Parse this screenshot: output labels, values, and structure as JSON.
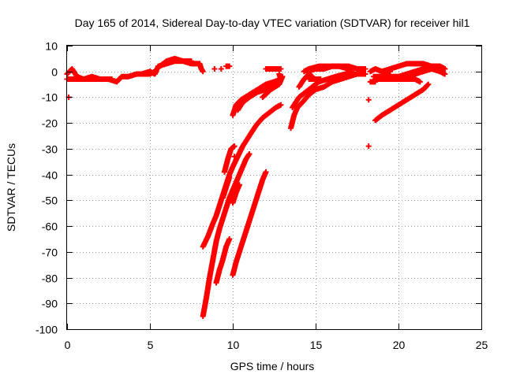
{
  "chart_data": {
    "type": "scatter",
    "title": "Day 165 of 2014, Sidereal Day-to-day VTEC variation (SDTVAR) for receiver hil1",
    "xlabel": "GPS time / hours",
    "ylabel": "SDTVAR / TECUs",
    "xlim": [
      0,
      25
    ],
    "ylim": [
      -100,
      10
    ],
    "xticks": [
      0,
      5,
      10,
      15,
      20,
      25
    ],
    "yticks": [
      10,
      0,
      -10,
      -20,
      -30,
      -40,
      -50,
      -60,
      -70,
      -80,
      -90,
      -100
    ],
    "grid": true,
    "marker": "+",
    "color": "#ff0000",
    "series": [
      {
        "segments": [
          [
            [
              0.0,
              -1
            ],
            [
              0.3,
              1
            ],
            [
              0.6,
              -2
            ],
            [
              1.0,
              -3
            ],
            [
              1.5,
              -2
            ],
            [
              2.0,
              -3
            ],
            [
              2.5,
              -3
            ],
            [
              3.0,
              -4
            ],
            [
              3.3,
              -2
            ],
            [
              3.7,
              -2
            ],
            [
              4.2,
              -1
            ],
            [
              4.7,
              -1
            ],
            [
              5.0,
              -1
            ],
            [
              5.3,
              0
            ]
          ],
          [
            [
              0.0,
              -3
            ],
            [
              0.4,
              -3
            ],
            [
              0.8,
              -3
            ],
            [
              1.2,
              -3
            ],
            [
              1.7,
              -3
            ],
            [
              2.2,
              -3
            ],
            [
              2.7,
              -3
            ]
          ],
          [
            [
              0.1,
              -10
            ]
          ],
          [
            [
              4.5,
              -1
            ],
            [
              5.0,
              0
            ],
            [
              5.3,
              -1
            ],
            [
              5.5,
              2
            ],
            [
              6.0,
              3
            ],
            [
              6.5,
              4
            ],
            [
              7.0,
              4
            ],
            [
              7.5,
              3
            ],
            [
              8.0,
              3
            ]
          ],
          [
            [
              5.6,
              2
            ],
            [
              6.0,
              4
            ],
            [
              6.5,
              5
            ],
            [
              7.0,
              4
            ],
            [
              7.5,
              4
            ]
          ],
          [
            [
              8.0,
              3
            ],
            [
              8.1,
              1
            ],
            [
              8.2,
              0
            ]
          ],
          [
            [
              8.9,
              1
            ]
          ],
          [
            [
              9.3,
              1
            ]
          ],
          [
            [
              9.6,
              2
            ],
            [
              9.8,
              2
            ]
          ],
          [
            [
              10.0,
              -17
            ],
            [
              10.2,
              -13
            ],
            [
              10.5,
              -11
            ],
            [
              11.0,
              -9
            ],
            [
              11.5,
              -7
            ],
            [
              12.0,
              -5
            ],
            [
              12.5,
              -4
            ],
            [
              12.9,
              -3
            ]
          ],
          [
            [
              10.3,
              -15
            ],
            [
              10.6,
              -12
            ],
            [
              11.0,
              -10
            ],
            [
              11.5,
              -8
            ],
            [
              12.0,
              -7
            ],
            [
              12.5,
              -5
            ]
          ],
          [
            [
              11.8,
              -10
            ],
            [
              12.3,
              -7
            ],
            [
              12.8,
              -5
            ],
            [
              13.0,
              -2
            ]
          ],
          [
            [
              12.0,
              1
            ],
            [
              12.3,
              1
            ],
            [
              12.6,
              1
            ],
            [
              12.9,
              1
            ]
          ],
          [
            [
              12.8,
              -1
            ],
            [
              12.9,
              -3
            ]
          ],
          [
            [
              8.2,
              -68
            ],
            [
              8.5,
              -64
            ],
            [
              8.8,
              -59
            ],
            [
              9.0,
              -56
            ],
            [
              9.2,
              -52
            ],
            [
              9.4,
              -48
            ],
            [
              9.6,
              -44
            ],
            [
              9.8,
              -40
            ],
            [
              10.0,
              -37
            ],
            [
              10.3,
              -33
            ],
            [
              10.6,
              -29
            ],
            [
              11.0,
              -25
            ],
            [
              11.4,
              -21
            ],
            [
              11.8,
              -18
            ],
            [
              12.2,
              -16
            ],
            [
              12.6,
              -14
            ],
            [
              12.9,
              -13
            ]
          ],
          [
            [
              8.2,
              -95
            ],
            [
              8.4,
              -88
            ],
            [
              8.6,
              -80
            ],
            [
              8.8,
              -73
            ],
            [
              9.0,
              -66
            ],
            [
              9.2,
              -61
            ],
            [
              9.4,
              -57
            ],
            [
              9.6,
              -53
            ],
            [
              9.8,
              -49
            ],
            [
              10.0,
              -46
            ],
            [
              10.2,
              -43
            ],
            [
              10.4,
              -40
            ],
            [
              10.6,
              -37
            ],
            [
              10.8,
              -34
            ],
            [
              11.0,
              -32
            ]
          ],
          [
            [
              9.0,
              -82
            ],
            [
              9.2,
              -77
            ],
            [
              9.4,
              -73
            ],
            [
              9.6,
              -68
            ],
            [
              9.8,
              -65
            ]
          ],
          [
            [
              10.0,
              -79
            ],
            [
              10.2,
              -74
            ],
            [
              10.4,
              -70
            ],
            [
              10.6,
              -66
            ],
            [
              10.8,
              -62
            ],
            [
              11.0,
              -58
            ],
            [
              11.2,
              -54
            ],
            [
              11.4,
              -50
            ],
            [
              11.6,
              -46
            ],
            [
              11.8,
              -42
            ],
            [
              12.0,
              -39
            ]
          ],
          [
            [
              9.5,
              -39
            ],
            [
              9.7,
              -34
            ],
            [
              9.9,
              -30
            ],
            [
              10.1,
              -29
            ]
          ],
          [
            [
              10.1,
              -33
            ]
          ],
          [
            [
              9.4,
              -49
            ],
            [
              9.6,
              -45
            ],
            [
              9.8,
              -41
            ]
          ],
          [
            [
              10.0,
              -51
            ],
            [
              10.2,
              -47
            ],
            [
              10.4,
              -44
            ]
          ],
          [
            [
              13.5,
              -22
            ],
            [
              13.7,
              -17
            ],
            [
              13.9,
              -14
            ],
            [
              14.2,
              -12
            ],
            [
              14.6,
              -9
            ],
            [
              15.0,
              -7
            ],
            [
              15.5,
              -6
            ],
            [
              16.0,
              -4
            ],
            [
              16.5,
              -3
            ],
            [
              17.0,
              -2
            ],
            [
              17.5,
              -1
            ],
            [
              18.0,
              -1
            ]
          ],
          [
            [
              13.6,
              -14
            ],
            [
              14.0,
              -10
            ],
            [
              14.4,
              -8
            ],
            [
              14.8,
              -6
            ],
            [
              15.2,
              -4
            ],
            [
              15.7,
              -3
            ],
            [
              16.2,
              -2
            ],
            [
              16.8,
              -1
            ],
            [
              17.2,
              0
            ]
          ],
          [
            [
              14.0,
              -6
            ],
            [
              14.3,
              -3
            ],
            [
              14.6,
              -1
            ],
            [
              14.8,
              -2
            ]
          ],
          [
            [
              14.5,
              0
            ],
            [
              15.0,
              1
            ],
            [
              15.5,
              1
            ],
            [
              16.0,
              2
            ],
            [
              16.5,
              2
            ],
            [
              17.0,
              2
            ],
            [
              17.5,
              1
            ],
            [
              18.0,
              1
            ]
          ],
          [
            [
              14.3,
              0
            ],
            [
              14.6,
              1
            ],
            [
              15.2,
              2
            ],
            [
              15.8,
              2
            ],
            [
              16.4,
              2
            ],
            [
              17.0,
              1
            ]
          ],
          [
            [
              14.6,
              -3
            ],
            [
              15.0,
              -3
            ],
            [
              15.3,
              -3
            ]
          ],
          [
            [
              18.2,
              -29
            ]
          ],
          [
            [
              18.2,
              -11
            ]
          ],
          [
            [
              18.3,
              -4
            ],
            [
              18.6,
              -4
            ]
          ],
          [
            [
              18.3,
              0
            ],
            [
              18.6,
              1
            ],
            [
              19.0,
              0
            ],
            [
              19.5,
              0
            ]
          ],
          [
            [
              18.5,
              -2
            ],
            [
              19.0,
              -2
            ],
            [
              19.5,
              -2
            ],
            [
              20.0,
              -2
            ],
            [
              20.5,
              -1
            ],
            [
              21.0,
              0
            ],
            [
              21.5,
              1
            ],
            [
              22.0,
              2
            ],
            [
              22.5,
              2
            ],
            [
              22.8,
              1
            ]
          ],
          [
            [
              18.6,
              -3
            ],
            [
              19.0,
              -3
            ],
            [
              19.5,
              -3
            ],
            [
              20.0,
              -3
            ],
            [
              20.5,
              -3
            ],
            [
              21.0,
              -3
            ],
            [
              21.3,
              -4
            ]
          ],
          [
            [
              19.0,
              0
            ],
            [
              19.5,
              1
            ],
            [
              20.0,
              2
            ],
            [
              20.5,
              3
            ],
            [
              21.0,
              3
            ],
            [
              21.5,
              3
            ],
            [
              22.0,
              2
            ],
            [
              22.5,
              2
            ],
            [
              22.8,
              1
            ]
          ],
          [
            [
              20.5,
              -2
            ],
            [
              21.0,
              -1
            ],
            [
              21.5,
              0
            ],
            [
              22.0,
              1
            ],
            [
              22.5,
              0
            ],
            [
              22.8,
              -1
            ]
          ],
          [
            [
              18.6,
              -19
            ],
            [
              19.0,
              -17
            ],
            [
              19.5,
              -15
            ],
            [
              20.0,
              -13
            ],
            [
              20.5,
              -11
            ],
            [
              21.0,
              -9
            ],
            [
              21.5,
              -7
            ],
            [
              21.8,
              -5
            ]
          ]
        ]
      }
    ]
  }
}
